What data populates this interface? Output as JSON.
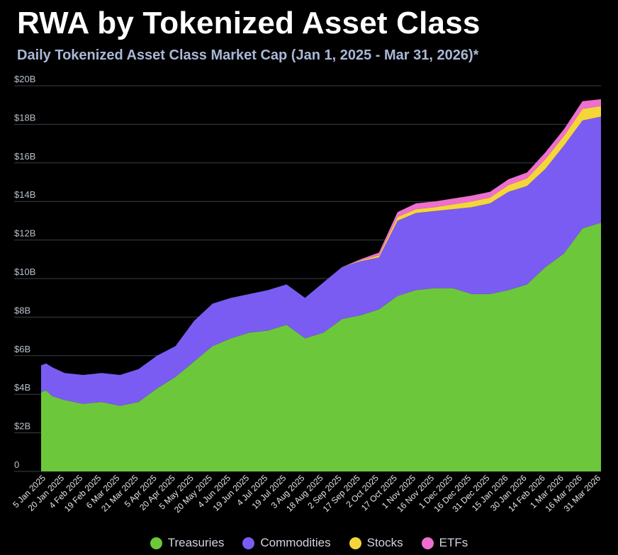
{
  "header": {
    "title": "RWA by Tokenized Asset Class",
    "subtitle": "Daily Tokenized Asset Class Market Cap (Jan 1, 2025 - Mar 31, 2026)*"
  },
  "colors": {
    "background": "#000000",
    "subtitle": "#aab8d6",
    "gridline": "#3a3f47",
    "Treasuries": "#6cc83a",
    "Commodities": "#7b5cf2",
    "Stocks": "#f5d63a",
    "ETFs": "#ee6fcf"
  },
  "chart_data": {
    "type": "area",
    "stacked": true,
    "x": [
      "1 Jan 2025",
      "5 Jan 2025",
      "10 Jan 2025",
      "20 Jan 2025",
      "4 Feb 2025",
      "19 Feb 2025",
      "6 Mar 2025",
      "21 Mar 2025",
      "5 Apr 2025",
      "20 Apr 2025",
      "5 May 2025",
      "20 May 2025",
      "4 Jun 2025",
      "19 Jun 2025",
      "4 Jul 2025",
      "19 Jul 2025",
      "3 Aug 2025",
      "18 Aug 2025",
      "2 Sep 2025",
      "17 Sep 2025",
      "2 Oct 2025",
      "17 Oct 2025",
      "1 Nov 2025",
      "16 Nov 2025",
      "1 Dec 2025",
      "16 Dec 2025",
      "31 Dec 2025",
      "15 Jan 2026",
      "30 Jan 2026",
      "14 Feb 2026",
      "1 Mar 2026",
      "16 Mar 2026",
      "31 Mar 2026"
    ],
    "series": [
      {
        "name": "Treasuries",
        "values": [
          4.1,
          4.2,
          3.9,
          3.7,
          3.5,
          3.6,
          3.4,
          3.6,
          4.3,
          4.9,
          5.7,
          6.5,
          6.9,
          7.2,
          7.3,
          7.6,
          6.9,
          7.2,
          7.9,
          8.1,
          8.4,
          9.1,
          9.4,
          9.5,
          9.5,
          9.2,
          9.2,
          9.4,
          9.7,
          10.6,
          11.3,
          12.6,
          12.9
        ]
      },
      {
        "name": "Commodities",
        "values": [
          1.4,
          1.4,
          1.5,
          1.4,
          1.5,
          1.5,
          1.6,
          1.7,
          1.7,
          1.6,
          2.1,
          2.2,
          2.1,
          2.0,
          2.1,
          2.1,
          2.1,
          2.6,
          2.7,
          2.8,
          2.7,
          3.9,
          4.0,
          4.0,
          4.1,
          4.5,
          4.7,
          5.1,
          5.1,
          5.1,
          5.6,
          5.6,
          5.5
        ]
      },
      {
        "name": "Stocks",
        "values": [
          0,
          0,
          0,
          0,
          0,
          0,
          0,
          0,
          0,
          0,
          0,
          0,
          0,
          0,
          0,
          0,
          0,
          0,
          0,
          0.05,
          0.1,
          0.2,
          0.2,
          0.2,
          0.25,
          0.3,
          0.3,
          0.35,
          0.4,
          0.5,
          0.5,
          0.6,
          0.55
        ]
      },
      {
        "name": "ETFs",
        "values": [
          0,
          0,
          0,
          0,
          0,
          0,
          0,
          0,
          0,
          0,
          0,
          0,
          0,
          0,
          0,
          0,
          0,
          0,
          0,
          0.05,
          0.15,
          0.25,
          0.3,
          0.3,
          0.3,
          0.3,
          0.3,
          0.3,
          0.3,
          0.35,
          0.35,
          0.4,
          0.35
        ]
      }
    ],
    "x_tick_labels": [
      "5 Jan 2025",
      "20 Jan 2025",
      "4 Feb 2025",
      "19 Feb 2025",
      "6 Mar 2025",
      "21 Mar 2025",
      "5 Apr 2025",
      "20 Apr 2025",
      "5 May 2025",
      "20 May 2025",
      "4 Jun 2025",
      "19 Jun 2025",
      "4 Jul 2025",
      "19 Jul 2025",
      "3 Aug 2025",
      "18 Aug 2025",
      "2 Sep 2025",
      "17 Sep 2025",
      "2 Oct 2025",
      "17 Oct 2025",
      "1 Nov 2025",
      "16 Nov 2025",
      "1 Dec 2025",
      "16 Dec 2025",
      "31 Dec 2025",
      "15 Jan 2026",
      "30 Jan 2026",
      "14 Feb 2026",
      "1 Mar 2026",
      "16 Mar 2026",
      "31 Mar 2026"
    ],
    "y_tick_labels": [
      "0",
      "$2B",
      "$4B",
      "$6B",
      "$8B",
      "$10B",
      "$12B",
      "$14B",
      "$16B",
      "$18B",
      "$20B"
    ],
    "y_tick_values": [
      0,
      2,
      4,
      6,
      8,
      10,
      12,
      14,
      16,
      18,
      20
    ],
    "ylim": [
      0,
      20
    ],
    "y_unit": "billion USD",
    "grid": true,
    "legend": [
      "Treasuries",
      "Commodities",
      "Stocks",
      "ETFs"
    ],
    "legend_position": "bottom"
  }
}
